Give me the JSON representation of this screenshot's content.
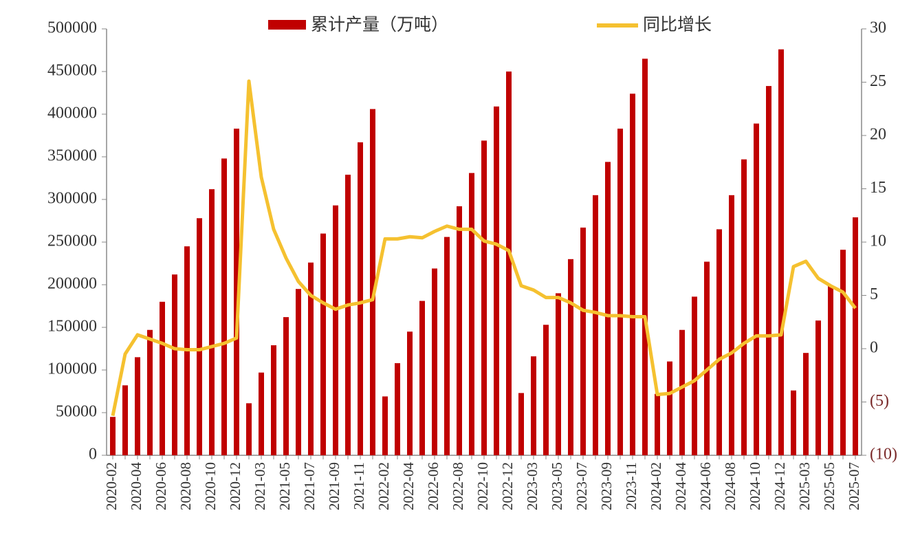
{
  "chart_data": {
    "type": "bar-line",
    "categories": [
      "2020-02",
      null,
      "2020-04",
      null,
      "2020-06",
      null,
      "2020-08",
      null,
      "2020-10",
      null,
      "2020-12",
      null,
      "2021-03",
      null,
      "2021-05",
      null,
      "2021-07",
      null,
      "2021-09",
      null,
      "2021-11",
      null,
      "2022-02",
      null,
      "2022-04",
      null,
      "2022-06",
      null,
      "2022-08",
      null,
      "2022-10",
      null,
      "2022-12",
      null,
      "2023-03",
      null,
      "2023-05",
      null,
      "2023-07",
      null,
      "2023-09",
      null,
      "2023-11",
      null,
      "2024-02",
      null,
      "2024-04",
      null,
      "2024-06",
      null,
      "2024-08",
      null,
      "2024-10",
      null,
      "2024-12",
      null,
      "2025-03",
      null,
      "2025-05",
      null,
      "2025-07"
    ],
    "series": [
      {
        "name": "累计产量（万吨）",
        "type": "bar",
        "color": "#c00000",
        "values": [
          45000,
          82000,
          115000,
          147000,
          180000,
          212000,
          245000,
          278000,
          312000,
          348000,
          383000,
          61000,
          97000,
          129000,
          162000,
          195000,
          226000,
          260000,
          293000,
          329000,
          367000,
          406000,
          69000,
          108000,
          145000,
          181000,
          219000,
          256000,
          292000,
          331000,
          369000,
          409000,
          450000,
          73000,
          116000,
          153000,
          190000,
          230000,
          267000,
          305000,
          344000,
          383000,
          424000,
          465000,
          72000,
          110000,
          147000,
          186000,
          227000,
          265000,
          305000,
          347000,
          389000,
          433000,
          476000,
          76000,
          120000,
          158000,
          199000,
          241000,
          279000
        ]
      },
      {
        "name": "同比增长",
        "type": "line",
        "axis": "y2",
        "color": "#f5c130",
        "values": [
          -6.3,
          -0.5,
          1.3,
          0.9,
          0.5,
          0,
          -0.1,
          -0.1,
          0.2,
          0.5,
          1.0,
          25.1,
          16.1,
          11.2,
          8.5,
          6.3,
          5.0,
          4.3,
          3.7,
          4.1,
          4.3,
          4.6,
          10.3,
          10.3,
          10.5,
          10.4,
          11.0,
          11.5,
          11.2,
          11.2,
          10.1,
          9.8,
          9.2,
          5.9,
          5.5,
          4.8,
          4.8,
          4.3,
          3.6,
          3.4,
          3.1,
          3.1,
          3.0,
          3.0,
          -4.3,
          -4.2,
          -3.6,
          -3.0,
          -2.0,
          -1.0,
          -0.4,
          0.5,
          1.2,
          1.2,
          1.3,
          7.7,
          8.2,
          6.6,
          5.9,
          5.3,
          3.8
        ]
      }
    ],
    "ylim": [
      0,
      500000
    ],
    "yticks": [
      0,
      50000,
      100000,
      150000,
      200000,
      250000,
      300000,
      350000,
      400000,
      450000,
      500000
    ],
    "y2lim": [
      -10,
      30
    ],
    "y2ticks": [
      {
        "value": -10,
        "label": "(10)"
      },
      {
        "value": -5,
        "label": "(5)"
      },
      0,
      5,
      10,
      15,
      20,
      25,
      30
    ]
  }
}
